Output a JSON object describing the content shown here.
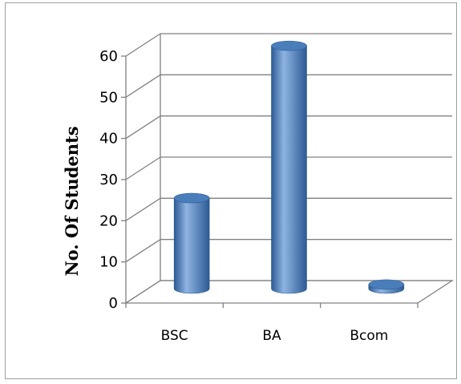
{
  "chart_data": {
    "type": "bar",
    "style": "3d-cylinder",
    "categories": [
      "BSC",
      "BA",
      "Bcom"
    ],
    "values": [
      22,
      59,
      1
    ],
    "ylabel": "No. Of Students",
    "xlabel": "",
    "ylim": [
      0,
      60
    ],
    "yticks": [
      0,
      10,
      20,
      30,
      40,
      50,
      60
    ],
    "grid": true,
    "legend": "none",
    "colors": {
      "bar": "#4a7ebb",
      "bar_dark": "#2c5a94",
      "bar_light": "#8fb4e3",
      "grid": "#808080",
      "axis": "#808080"
    }
  }
}
